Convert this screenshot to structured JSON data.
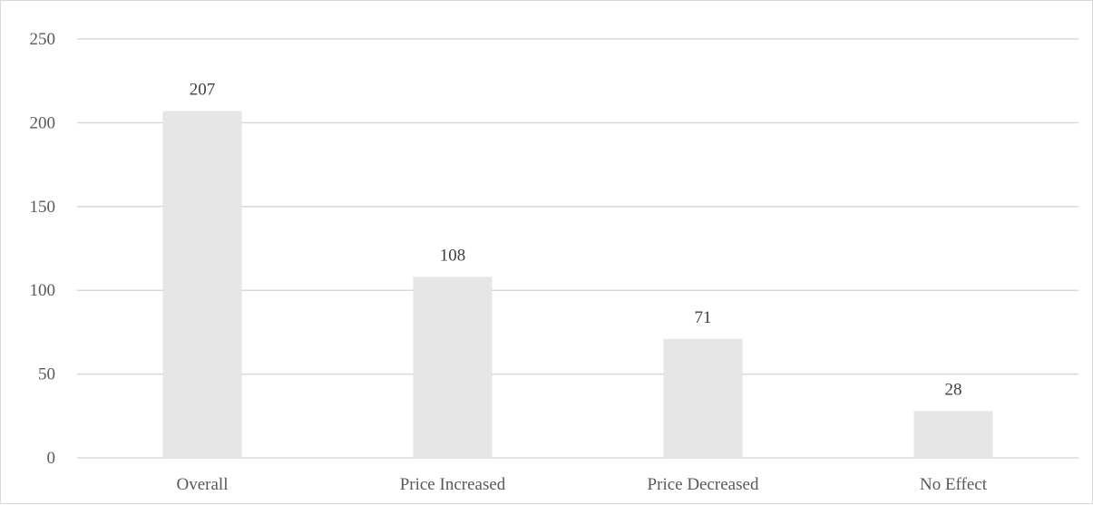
{
  "chart_data": {
    "type": "bar",
    "categories": [
      "Overall",
      "Price Increased",
      "Price Decreased",
      "No Effect"
    ],
    "values": [
      207,
      108,
      71,
      28
    ],
    "data_labels": [
      "207",
      "108",
      "71",
      "28"
    ],
    "title": "",
    "xlabel": "",
    "ylabel": "",
    "ylim": [
      0,
      250
    ],
    "yticks": [
      "0",
      "50",
      "100",
      "150",
      "200",
      "250"
    ],
    "grid": true,
    "legend": "none",
    "bar_color": "#e6e6e6",
    "grid_color": "#d9d9d9"
  }
}
